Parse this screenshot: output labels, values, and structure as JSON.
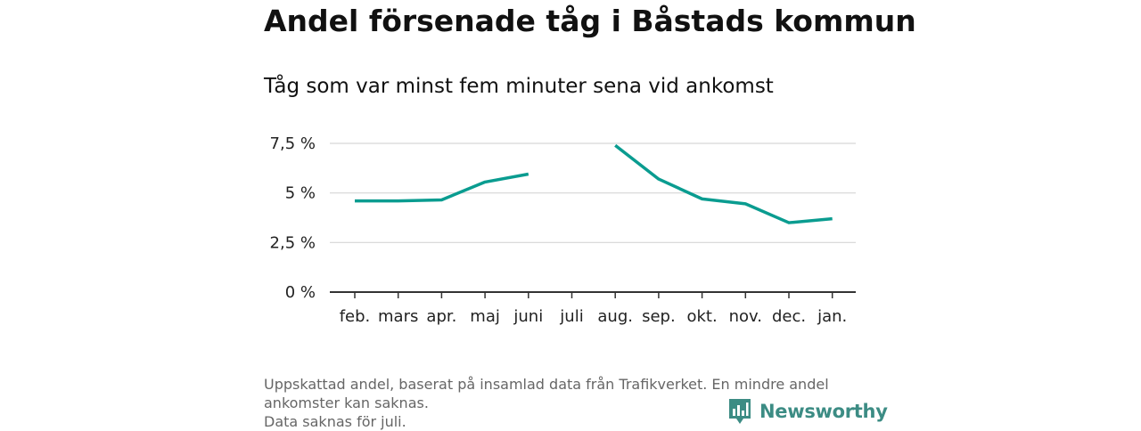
{
  "title": "Andel försenade tåg i Båstads kommun",
  "subtitle": "Tåg som var minst fem minuter sena vid ankomst",
  "chart_data": {
    "type": "line",
    "categories": [
      "feb.",
      "mars",
      "apr.",
      "maj",
      "juni",
      "juli",
      "aug.",
      "sep.",
      "okt.",
      "nov.",
      "dec.",
      "jan."
    ],
    "series": [
      {
        "values": [
          4.6,
          4.6,
          4.65,
          5.55,
          5.95,
          null,
          7.4,
          5.7,
          4.7,
          4.45,
          3.5,
          3.7
        ]
      }
    ],
    "ylim": [
      0,
      7.5
    ],
    "yticks": [
      0,
      2.5,
      5,
      7.5
    ],
    "ytick_labels": [
      "0 %",
      "2,5 %",
      "5 %",
      "7,5 %"
    ],
    "grid": true,
    "color": "#0a9c90"
  },
  "footer": {
    "line1": "Uppskattad andel, baserat på insamlad data från Trafikverket. En mindre andel",
    "line2": "ankomster kan saknas.",
    "line3": "Data saknas för juli."
  },
  "logo": {
    "text": "Newsworthy",
    "icon": "bar-chart-badge-icon",
    "color": "#3c8c84"
  }
}
